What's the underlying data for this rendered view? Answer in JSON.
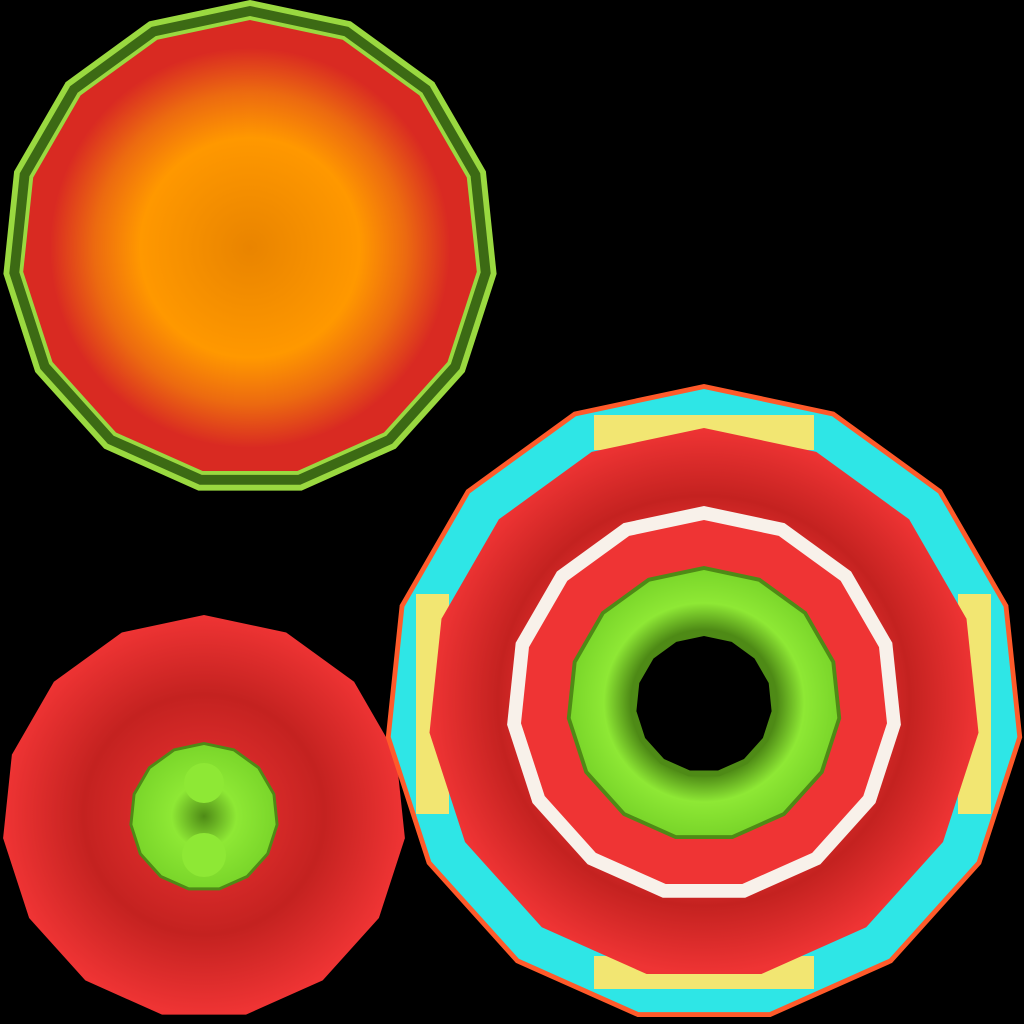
{
  "background_color": "#000000",
  "textures": {
    "orange_disc": {
      "sides": 15,
      "colors": {
        "rim_dark": "#3c6a14",
        "rim_light": "#9ad940",
        "red": "#d92a22",
        "orange_center": "#f08a08",
        "orange_edge": "#ff9800"
      }
    },
    "red_disc": {
      "sides": 15,
      "colors": {
        "red": "#ef3434",
        "red_shadow": "#c42220",
        "green": "#8ee835",
        "green_dark": "#4e8a16"
      }
    },
    "target_ring": {
      "sides": 15,
      "colors": {
        "outline": "#ff5a2a",
        "cyan": "#2ee6e6",
        "yellow": "#f2e672",
        "red": "#ef3434",
        "red_shadow": "#c42220",
        "white": "#f8f1ea",
        "green": "#8ee835",
        "green_dark": "#4e8a16",
        "hole": "#000000"
      }
    }
  }
}
